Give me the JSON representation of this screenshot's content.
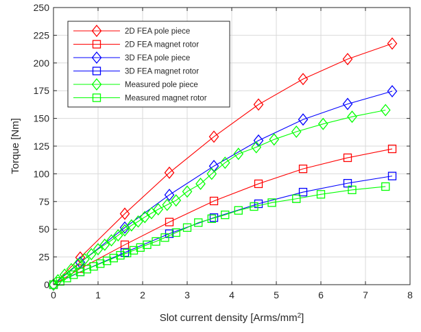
{
  "chart_data": {
    "type": "line",
    "title": "",
    "xlabel": "Slot current density [Arms/mm",
    "xlabel_superscript": "2",
    "xlabel_suffix": "]",
    "ylabel": "Torque [Nm]",
    "xlim": [
      0,
      8
    ],
    "ylim": [
      0,
      250
    ],
    "x_ticks": [
      "0",
      "1",
      "2",
      "3",
      "4",
      "5",
      "6",
      "7",
      "8"
    ],
    "y_ticks": [
      "0",
      "25",
      "50",
      "75",
      "100",
      "125",
      "150",
      "175",
      "200",
      "225",
      "250"
    ],
    "grid": true,
    "legend_position": "top-left",
    "series": [
      {
        "name": "2D FEA pole piece",
        "color": "#ff0000",
        "marker": "diamond",
        "x": [
          0,
          0.6,
          1.6,
          2.6,
          3.6,
          4.6,
          5.6,
          6.6,
          7.6
        ],
        "y": [
          0,
          24.5,
          64,
          101,
          133.5,
          162.5,
          185.5,
          203.5,
          217.5
        ]
      },
      {
        "name": "2D FEA magnet rotor",
        "color": "#ff0000",
        "marker": "square",
        "x": [
          0,
          0.6,
          1.6,
          2.6,
          3.6,
          4.6,
          5.6,
          6.6,
          7.6
        ],
        "y": [
          0,
          14.5,
          36,
          56.5,
          75.5,
          91,
          104.5,
          114.5,
          122.5
        ]
      },
      {
        "name": "3D FEA pole piece",
        "color": "#0000ff",
        "marker": "diamond",
        "x": [
          0,
          0.6,
          1.6,
          2.6,
          3.6,
          4.6,
          5.6,
          6.6,
          7.6
        ],
        "y": [
          0,
          20,
          51.5,
          81,
          107,
          130,
          149,
          163,
          174.5
        ]
      },
      {
        "name": "3D FEA magnet rotor",
        "color": "#0000ff",
        "marker": "square",
        "x": [
          0,
          0.6,
          1.6,
          2.6,
          3.6,
          4.6,
          5.6,
          6.6,
          7.6
        ],
        "y": [
          0,
          11.5,
          29,
          46,
          60.5,
          73,
          83.5,
          91.5,
          98
        ]
      },
      {
        "name": "Measured pole piece",
        "color": "#00ff00",
        "marker": "diamond",
        "x": [
          0,
          0.1,
          0.25,
          0.4,
          0.55,
          0.7,
          0.85,
          1.0,
          1.15,
          1.3,
          1.45,
          1.6,
          1.75,
          1.9,
          2.05,
          2.2,
          2.35,
          2.55,
          2.75,
          3.0,
          3.3,
          3.55,
          3.85,
          4.15,
          4.55,
          4.95,
          5.45,
          6.05,
          6.7,
          7.45
        ],
        "y": [
          0,
          4,
          9,
          14,
          18.5,
          23,
          27.5,
          32,
          36,
          40,
          44.5,
          49,
          53.5,
          57,
          61,
          64.5,
          68,
          72,
          76,
          84,
          91,
          100,
          110,
          118,
          124,
          131,
          138,
          145,
          151.5,
          157.5
        ]
      },
      {
        "name": "Measured magnet rotor",
        "color": "#00ff00",
        "marker": "square",
        "x": [
          0,
          0.15,
          0.3,
          0.45,
          0.6,
          0.75,
          0.9,
          1.05,
          1.2,
          1.35,
          1.5,
          1.65,
          1.8,
          1.95,
          2.1,
          2.3,
          2.5,
          2.75,
          3.0,
          3.25,
          3.55,
          3.85,
          4.15,
          4.5,
          4.9,
          5.45,
          6.0,
          6.7,
          7.45
        ],
        "y": [
          0,
          3,
          6,
          9,
          11.5,
          14,
          16.5,
          19,
          21.5,
          24,
          26.5,
          28.5,
          31,
          33.5,
          36,
          39,
          42.5,
          47,
          51.5,
          56,
          59.5,
          63,
          67,
          70.5,
          74,
          77.5,
          81.5,
          85.5,
          88.5
        ]
      }
    ]
  }
}
